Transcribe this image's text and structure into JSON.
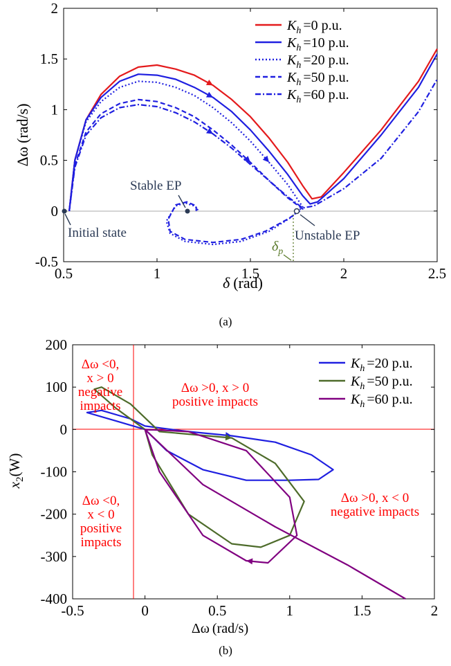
{
  "panels": [
    {
      "caption": "(a)",
      "xlabel": "(rad)",
      "xlabel_symbol": "δ",
      "ylabel": "(rad/s)",
      "ylabel_symbol": "Δω",
      "xticks": [
        "0.5",
        "1",
        "1.5",
        "2",
        "2.5"
      ],
      "yticks": [
        "-0.5",
        "0",
        "0.5",
        "1",
        "1.5",
        "2"
      ],
      "legend_symbol": "K",
      "legend_subscript": "h",
      "legend": [
        "=0 p.u.",
        "=10 p.u.",
        "=20 p.u.",
        "=50 p.u.",
        "=60 p.u."
      ],
      "annotations": {
        "stable_ep": "Stable EP",
        "initial_state": "Initial state",
        "unstable_ep": "Unstable EP",
        "delta_p_symbol": "δ",
        "delta_p_subscript": "p"
      }
    },
    {
      "caption": "(b)",
      "xlabel": "(rad/s)",
      "xlabel_symbol": "Δω",
      "ylabel": "(W)",
      "ylabel_symbol": "x",
      "ylabel_subscript": "2",
      "xticks": [
        "-0.5",
        "0",
        "0.5",
        "1",
        "1.5",
        "2"
      ],
      "yticks": [
        "-400",
        "-300",
        "-200",
        "-100",
        "0",
        "100",
        "200"
      ],
      "legend_symbol": "K",
      "legend_subscript": "h",
      "legend": [
        "=20 p.u.",
        "=50 p.u.",
        "=60 p.u."
      ],
      "quadrants": {
        "top_left": [
          "Δω <0,",
          "x > 0",
          "negative",
          "impacts"
        ],
        "top_right": [
          "Δω >0, x > 0",
          "positive impacts"
        ],
        "bottom_left": [
          "Δω <0,",
          "x < 0",
          "positive",
          "impacts"
        ],
        "bottom_right": [
          "Δω >0, x < 0",
          "negative impacts"
        ]
      }
    }
  ],
  "colors": {
    "red": "#e41a1c",
    "blue": "#1f1fe0",
    "olive": "#4d6b2a",
    "purple": "#800080",
    "annotation_dark": "#2b3a55",
    "annotation_olive": "#5a7a2a",
    "quadrant_text": "#ff0000"
  },
  "chart_data": [
    {
      "type": "line",
      "xlim": [
        0.5,
        2.5
      ],
      "ylim": [
        -0.5,
        2
      ],
      "grid": false,
      "legend_position": "top-right",
      "series": [
        {
          "name": "Kh =0 p.u.",
          "color": "#e41a1c",
          "style": "solid",
          "points": [
            [
              0.53,
              0
            ],
            [
              0.56,
              0.5
            ],
            [
              0.62,
              0.9
            ],
            [
              0.7,
              1.15
            ],
            [
              0.8,
              1.33
            ],
            [
              0.9,
              1.42
            ],
            [
              1.0,
              1.44
            ],
            [
              1.1,
              1.4
            ],
            [
              1.2,
              1.34
            ],
            [
              1.3,
              1.24
            ],
            [
              1.4,
              1.1
            ],
            [
              1.5,
              0.93
            ],
            [
              1.6,
              0.72
            ],
            [
              1.7,
              0.48
            ],
            [
              1.78,
              0.25
            ],
            [
              1.83,
              0.12
            ],
            [
              1.88,
              0.14
            ],
            [
              2.0,
              0.38
            ],
            [
              2.2,
              0.8
            ],
            [
              2.4,
              1.28
            ],
            [
              2.5,
              1.6
            ]
          ]
        },
        {
          "name": "Kh =10 p.u.",
          "color": "#1f1fe0",
          "style": "solid",
          "points": [
            [
              0.53,
              0
            ],
            [
              0.56,
              0.5
            ],
            [
              0.62,
              0.9
            ],
            [
              0.7,
              1.12
            ],
            [
              0.8,
              1.28
            ],
            [
              0.9,
              1.35
            ],
            [
              1.0,
              1.34
            ],
            [
              1.1,
              1.3
            ],
            [
              1.2,
              1.22
            ],
            [
              1.3,
              1.12
            ],
            [
              1.4,
              0.98
            ],
            [
              1.5,
              0.8
            ],
            [
              1.6,
              0.59
            ],
            [
              1.7,
              0.36
            ],
            [
              1.78,
              0.15
            ],
            [
              1.82,
              0.07
            ],
            [
              1.86,
              0.09
            ],
            [
              2.0,
              0.32
            ],
            [
              2.2,
              0.75
            ],
            [
              2.4,
              1.22
            ],
            [
              2.5,
              1.55
            ]
          ]
        },
        {
          "name": "Kh =20 p.u.",
          "color": "#1f1fe0",
          "style": "dotted",
          "points": [
            [
              0.53,
              0
            ],
            [
              0.56,
              0.5
            ],
            [
              0.62,
              0.88
            ],
            [
              0.7,
              1.08
            ],
            [
              0.8,
              1.22
            ],
            [
              0.9,
              1.28
            ],
            [
              1.0,
              1.27
            ],
            [
              1.1,
              1.22
            ],
            [
              1.2,
              1.14
            ],
            [
              1.3,
              1.02
            ],
            [
              1.4,
              0.87
            ],
            [
              1.5,
              0.69
            ],
            [
              1.6,
              0.48
            ],
            [
              1.7,
              0.26
            ],
            [
              1.78,
              0.04
            ],
            [
              1.72,
              -0.06
            ],
            [
              1.6,
              -0.2
            ],
            [
              1.45,
              -0.3
            ],
            [
              1.3,
              -0.33
            ],
            [
              1.15,
              -0.3
            ],
            [
              1.07,
              -0.22
            ],
            [
              1.05,
              -0.1
            ],
            [
              1.1,
              0.05
            ],
            [
              1.15,
              0.08
            ],
            [
              1.2,
              0.05
            ],
            [
              1.22,
              0.02
            ],
            [
              1.21,
              0
            ]
          ]
        },
        {
          "name": "Kh =50 p.u.",
          "color": "#1f1fe0",
          "style": "dashed",
          "points": [
            [
              0.53,
              0
            ],
            [
              0.56,
              0.45
            ],
            [
              0.62,
              0.78
            ],
            [
              0.7,
              0.96
            ],
            [
              0.8,
              1.06
            ],
            [
              0.9,
              1.1
            ],
            [
              1.0,
              1.08
            ],
            [
              1.1,
              1.02
            ],
            [
              1.2,
              0.93
            ],
            [
              1.3,
              0.8
            ],
            [
              1.4,
              0.65
            ],
            [
              1.5,
              0.48
            ],
            [
              1.6,
              0.3
            ],
            [
              1.7,
              0.13
            ],
            [
              1.78,
              0.02
            ],
            [
              1.7,
              -0.08
            ],
            [
              1.58,
              -0.2
            ],
            [
              1.45,
              -0.28
            ],
            [
              1.3,
              -0.31
            ],
            [
              1.15,
              -0.28
            ],
            [
              1.07,
              -0.2
            ],
            [
              1.06,
              -0.08
            ],
            [
              1.1,
              0.06
            ],
            [
              1.16,
              0.09
            ],
            [
              1.21,
              0.05
            ],
            [
              1.21,
              0
            ]
          ]
        },
        {
          "name": "Kh =60 p.u.",
          "color": "#1f1fe0",
          "style": "dashdot",
          "points": [
            [
              0.53,
              0
            ],
            [
              0.56,
              0.43
            ],
            [
              0.62,
              0.75
            ],
            [
              0.7,
              0.92
            ],
            [
              0.8,
              1.02
            ],
            [
              0.9,
              1.05
            ],
            [
              1.0,
              1.03
            ],
            [
              1.1,
              0.97
            ],
            [
              1.2,
              0.88
            ],
            [
              1.3,
              0.76
            ],
            [
              1.4,
              0.62
            ],
            [
              1.5,
              0.46
            ],
            [
              1.6,
              0.3
            ],
            [
              1.7,
              0.14
            ],
            [
              1.78,
              0.03
            ],
            [
              1.84,
              0.05
            ],
            [
              2.0,
              0.22
            ],
            [
              2.2,
              0.52
            ],
            [
              2.4,
              0.98
            ],
            [
              2.5,
              1.3
            ]
          ]
        }
      ]
    },
    {
      "type": "line",
      "xlim": [
        -0.5,
        2
      ],
      "ylim": [
        -400,
        200
      ],
      "grid": false,
      "legend_position": "top-right",
      "series": [
        {
          "name": "Kh =20 p.u.",
          "color": "#1f1fe0",
          "style": "solid",
          "points": [
            [
              0,
              0
            ],
            [
              -0.2,
              20
            ],
            [
              -0.4,
              40
            ],
            [
              -0.3,
              45
            ],
            [
              -0.1,
              25
            ],
            [
              0,
              8
            ],
            [
              0.3,
              -5
            ],
            [
              0.6,
              -15
            ],
            [
              0.9,
              -30
            ],
            [
              1.15,
              -60
            ],
            [
              1.3,
              -95
            ],
            [
              1.2,
              -118
            ],
            [
              1.0,
              -120
            ],
            [
              0.7,
              -120
            ],
            [
              0.4,
              -95
            ],
            [
              0.15,
              -50
            ],
            [
              0,
              0
            ]
          ]
        },
        {
          "name": "Kh =50 p.u.",
          "color": "#4d6b2a",
          "style": "solid",
          "points": [
            [
              0,
              0
            ],
            [
              -0.2,
              50
            ],
            [
              -0.35,
              95
            ],
            [
              -0.3,
              100
            ],
            [
              -0.1,
              60
            ],
            [
              0.1,
              -5
            ],
            [
              0.6,
              -20
            ],
            [
              0.9,
              -80
            ],
            [
              1.1,
              -170
            ],
            [
              1.0,
              -250
            ],
            [
              0.8,
              -278
            ],
            [
              0.6,
              -270
            ],
            [
              0.3,
              -200
            ],
            [
              0.05,
              -60
            ],
            [
              0,
              0
            ]
          ]
        },
        {
          "name": "Kh =60 p.u.",
          "color": "#800080",
          "style": "solid",
          "points": [
            [
              0,
              0
            ],
            [
              0.3,
              -5
            ],
            [
              0.7,
              -50
            ],
            [
              1.0,
              -160
            ],
            [
              1.05,
              -250
            ],
            [
              0.85,
              -315
            ],
            [
              0.7,
              -310
            ],
            [
              0.4,
              -250
            ],
            [
              0.1,
              -100
            ],
            [
              0,
              0
            ],
            [
              0.4,
              -130
            ],
            [
              0.9,
              -230
            ],
            [
              1.4,
              -320
            ],
            [
              1.8,
              -400
            ]
          ]
        }
      ]
    }
  ]
}
